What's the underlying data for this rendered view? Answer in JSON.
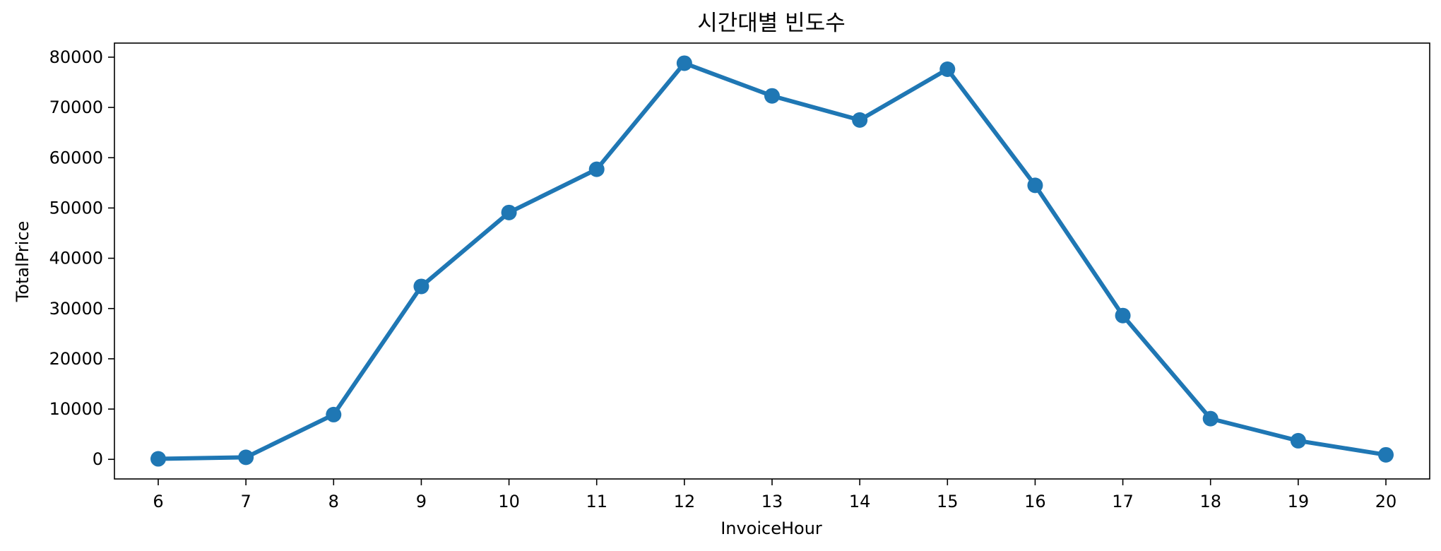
{
  "chart_data": {
    "type": "line",
    "title": "시간대별 빈도수",
    "xlabel": "InvoiceHour",
    "ylabel": "TotalPrice",
    "x": [
      6,
      7,
      8,
      9,
      10,
      11,
      12,
      13,
      14,
      15,
      16,
      17,
      18,
      19,
      20
    ],
    "series": [
      {
        "values": [
          100,
          400,
          8900,
          34400,
          49100,
          57700,
          78800,
          72300,
          67500,
          77600,
          54500,
          28600,
          8100,
          3700,
          900
        ],
        "color": "#1f77b4"
      }
    ],
    "yticks": [
      0,
      10000,
      20000,
      30000,
      40000,
      50000,
      60000,
      70000,
      80000
    ],
    "ylim": [
      -3900,
      82800
    ],
    "grid": false,
    "legend": "none"
  }
}
